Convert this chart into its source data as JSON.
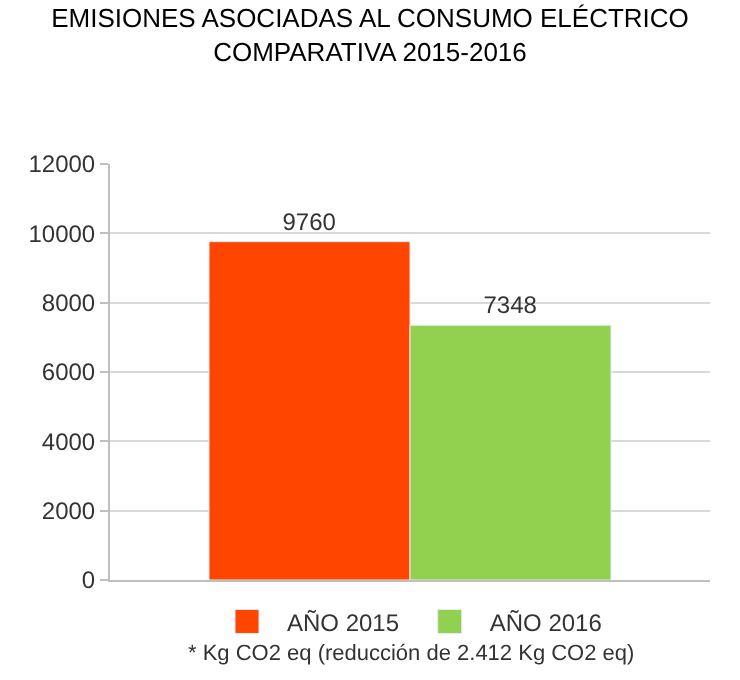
{
  "chart_data": {
    "type": "bar",
    "title": "EMISIONES ASOCIADAS AL CONSUMO ELÉCTRICO\nCOMPARATIVA 2015-2016",
    "categories": [
      null
    ],
    "series": [
      {
        "name": "AÑO 2015",
        "color": "#ff4500",
        "values": [
          9760
        ]
      },
      {
        "name": "AÑO 2016",
        "color": "#92d050",
        "values": [
          7348
        ]
      }
    ],
    "ylim": [
      0,
      12000
    ],
    "yticks": [
      0,
      2000,
      4000,
      6000,
      8000,
      10000,
      12000
    ],
    "grid": "y",
    "legend": "bottom",
    "data_labels": true,
    "annotations": [
      "* Kg CO2 eq (reducción de 2.412 Kg CO2 eq)"
    ]
  }
}
